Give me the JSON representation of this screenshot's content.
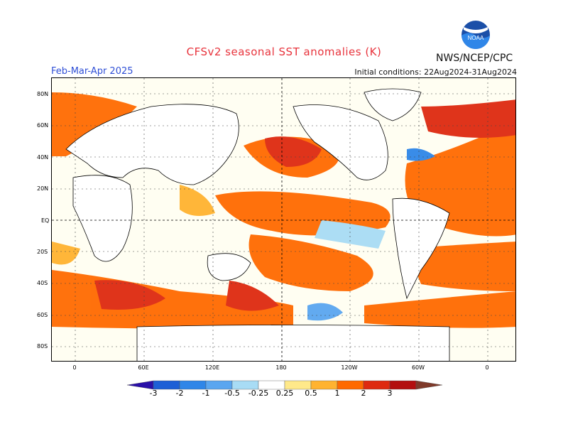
{
  "title": "CFSv2 seasonal SST anomalies (K)",
  "period": "Feb-Mar-Apr 2025",
  "initial_conditions": "Initial conditions: 22Aug2024-31Aug2024",
  "organization": "NWS/NCEP/CPC",
  "logo_text": "NOAA",
  "lat_labels": [
    "80N",
    "60N",
    "40N",
    "20N",
    "EQ",
    "20S",
    "40S",
    "60S",
    "80S"
  ],
  "lon_labels": [
    "0",
    "60E",
    "120E",
    "180",
    "120W",
    "60W",
    "0"
  ],
  "colorbar": {
    "labels": [
      "-3",
      "-2",
      "-1",
      "-0.5",
      "-0.25",
      "0.25",
      "0.5",
      "1",
      "2",
      "3"
    ],
    "colors": [
      "#2a10a8",
      "#1d5fd6",
      "#2f86e8",
      "#5aa6f0",
      "#a8dcf5",
      "#ffffff",
      "#ffe98a",
      "#ffb330",
      "#ff6a00",
      "#de2a10",
      "#b30f0f",
      "#7f3a2a"
    ]
  },
  "colors": {
    "title": "#e8333c",
    "period": "#2f4fd6",
    "ocean_neutral": "#fffef2"
  }
}
